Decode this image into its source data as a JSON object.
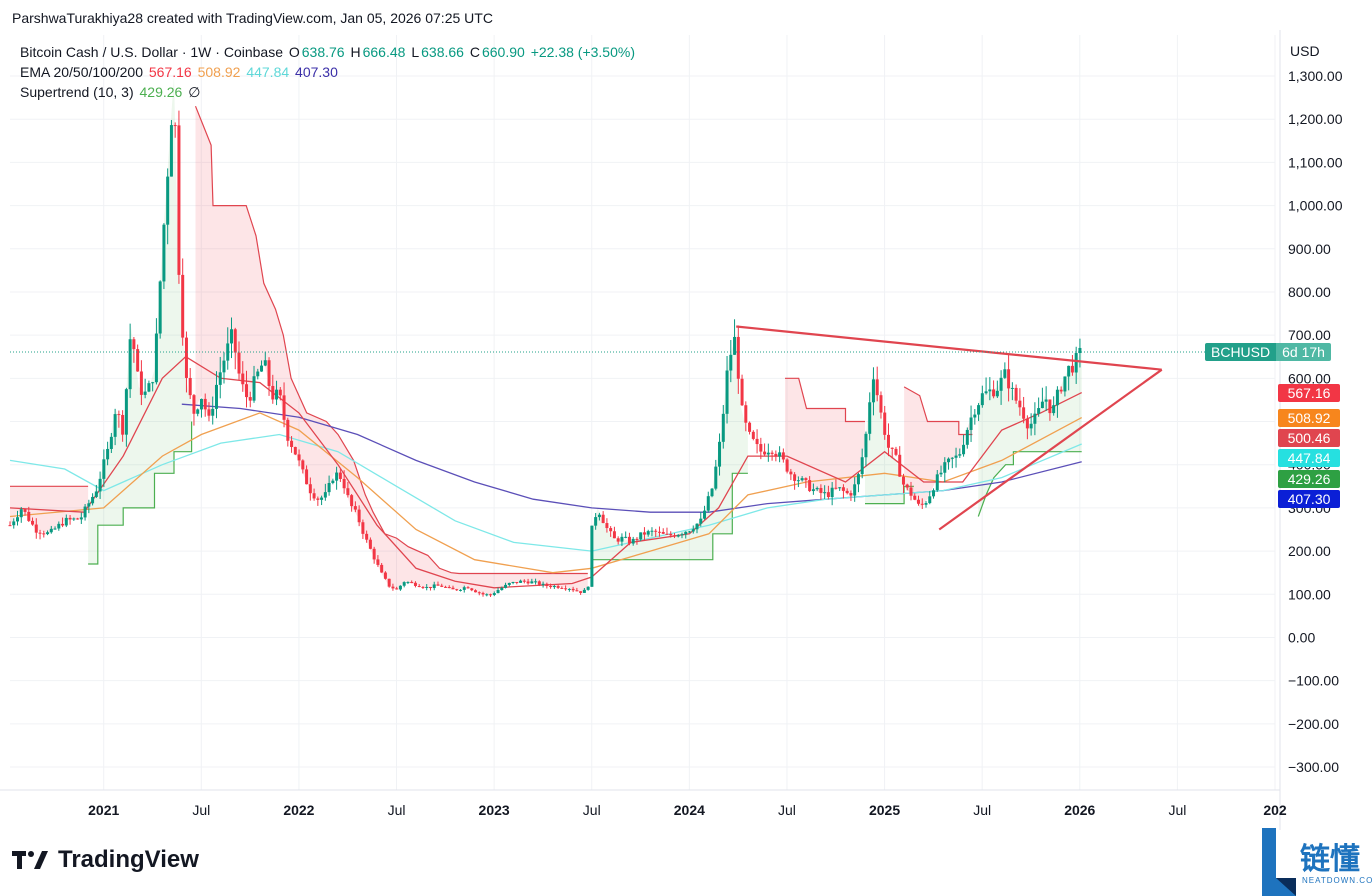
{
  "header": {
    "created_by": "ParshwaTurakhiya28 created with TradingView.com, Jan 05, 2026 07:25 UTC"
  },
  "legend": {
    "symbol": "Bitcoin Cash / U.S. Dollar · 1W · Coinbase",
    "o_label": "O",
    "o_value": "638.76",
    "h_label": "H",
    "h_value": "666.48",
    "l_label": "L",
    "l_value": "638.66",
    "c_label": "C",
    "c_value": "660.90",
    "change": "+22.38 (+3.50%)",
    "ema_label": "EMA 20/50/100/200",
    "ema20": "567.16",
    "ema50": "508.92",
    "ema100": "447.84",
    "ema200": "407.30",
    "supertrend_label": "Supertrend (10, 3)",
    "supertrend_value": "429.26",
    "supertrend_icon": "∅"
  },
  "axis": {
    "currency": "USD"
  },
  "symbol_tag": {
    "symbol": "BCHUSD",
    "countdown": "6d 17h"
  },
  "price_tags": [
    {
      "value": "567.16",
      "color": "#f23645",
      "price": 567.16
    },
    {
      "value": "508.92",
      "color": "#f7861d",
      "price": 508.92
    },
    {
      "value": "500.46",
      "color": "#e0454f",
      "price": 500.46
    },
    {
      "value": "447.84",
      "color": "#26e0e0",
      "price": 447.84
    },
    {
      "value": "429.26",
      "color": "#2ea043",
      "price": 429.26
    },
    {
      "value": "407.30",
      "color": "#0b1fd6",
      "price": 407.3
    }
  ],
  "footer": {
    "brand": "TradingView"
  },
  "watermark": {
    "cn": "链懂",
    "en": "NEATDOWN.COM"
  },
  "colors": {
    "up": "#089981",
    "down": "#f23645",
    "ema20": "#e0454f",
    "ema50": "#f0a050",
    "ema100": "#7ee8e8",
    "ema200": "#5b4fb8",
    "supertrend_up": "#4caf50",
    "supertrend_down": "#e0454f",
    "trendline": "#e0454f"
  },
  "chart_data": {
    "type": "candlestick",
    "title": "Bitcoin Cash / U.S. Dollar · 1W · Coinbase",
    "ylim": [
      -330,
      1350
    ],
    "y_ticks": [
      1300,
      1200,
      1100,
      1000,
      900,
      800,
      700,
      600,
      500,
      400,
      300,
      200,
      100,
      0,
      -100,
      -200,
      -300
    ],
    "y_tick_labels": [
      "1,300.00",
      "1,200.00",
      "1,100.00",
      "1,000.00",
      "900.00",
      "800.00",
      "700.00",
      "600.00",
      "500.00",
      "400.00",
      "300.00",
      "200.00",
      "100.00",
      "0.00",
      "−100.00",
      "−200.00",
      "−300.00"
    ],
    "x_ticks": [
      {
        "label": "2021",
        "t": 2021.0,
        "bold": true
      },
      {
        "label": "Jul",
        "t": 2021.5,
        "bold": false
      },
      {
        "label": "2022",
        "t": 2022.0,
        "bold": true
      },
      {
        "label": "Jul",
        "t": 2022.5,
        "bold": false
      },
      {
        "label": "2023",
        "t": 2023.0,
        "bold": true
      },
      {
        "label": "Jul",
        "t": 2023.5,
        "bold": false
      },
      {
        "label": "2024",
        "t": 2024.0,
        "bold": true
      },
      {
        "label": "Jul",
        "t": 2024.5,
        "bold": false
      },
      {
        "label": "2025",
        "t": 2025.0,
        "bold": true
      },
      {
        "label": "Jul",
        "t": 2025.5,
        "bold": false
      },
      {
        "label": "2026",
        "t": 2026.0,
        "bold": true
      },
      {
        "label": "Jul",
        "t": 2026.5,
        "bold": false
      },
      {
        "label": "202",
        "t": 2027.0,
        "bold": true
      }
    ],
    "last_price": 660.9,
    "price_path": [
      [
        2020.52,
        260
      ],
      [
        2020.58,
        300
      ],
      [
        2020.65,
        250
      ],
      [
        2020.72,
        240
      ],
      [
        2020.8,
        270
      ],
      [
        2020.88,
        275
      ],
      [
        2020.96,
        340
      ],
      [
        2021.02,
        430
      ],
      [
        2021.06,
        530
      ],
      [
        2021.1,
        480
      ],
      [
        2021.14,
        720
      ],
      [
        2021.18,
        580
      ],
      [
        2021.22,
        560
      ],
      [
        2021.26,
        620
      ],
      [
        2021.3,
        900
      ],
      [
        2021.33,
        1100
      ],
      [
        2021.36,
        1300
      ],
      [
        2021.38,
        900
      ],
      [
        2021.42,
        600
      ],
      [
        2021.46,
        520
      ],
      [
        2021.5,
        560
      ],
      [
        2021.54,
        500
      ],
      [
        2021.58,
        590
      ],
      [
        2021.62,
        650
      ],
      [
        2021.66,
        700
      ],
      [
        2021.7,
        590
      ],
      [
        2021.74,
        550
      ],
      [
        2021.78,
        600
      ],
      [
        2021.82,
        640
      ],
      [
        2021.86,
        560
      ],
      [
        2021.9,
        560
      ],
      [
        2021.94,
        470
      ],
      [
        2021.98,
        430
      ],
      [
        2022.02,
        380
      ],
      [
        2022.06,
        340
      ],
      [
        2022.1,
        320
      ],
      [
        2022.14,
        330
      ],
      [
        2022.18,
        380
      ],
      [
        2022.22,
        370
      ],
      [
        2022.26,
        310
      ],
      [
        2022.3,
        280
      ],
      [
        2022.34,
        230
      ],
      [
        2022.38,
        190
      ],
      [
        2022.42,
        150
      ],
      [
        2022.46,
        120
      ],
      [
        2022.5,
        110
      ],
      [
        2022.54,
        130
      ],
      [
        2022.58,
        125
      ],
      [
        2022.62,
        120
      ],
      [
        2022.66,
        115
      ],
      [
        2022.7,
        120
      ],
      [
        2022.74,
        118
      ],
      [
        2022.78,
        110
      ],
      [
        2022.82,
        112
      ],
      [
        2022.86,
        118
      ],
      [
        2022.9,
        108
      ],
      [
        2022.94,
        100
      ],
      [
        2022.98,
        98
      ],
      [
        2023.02,
        110
      ],
      [
        2023.08,
        125
      ],
      [
        2023.14,
        130
      ],
      [
        2023.2,
        128
      ],
      [
        2023.26,
        120
      ],
      [
        2023.32,
        118
      ],
      [
        2023.38,
        115
      ],
      [
        2023.44,
        105
      ],
      [
        2023.48,
        110
      ],
      [
        2023.5,
        250
      ],
      [
        2023.53,
        300
      ],
      [
        2023.58,
        250
      ],
      [
        2023.62,
        225
      ],
      [
        2023.66,
        230
      ],
      [
        2023.7,
        220
      ],
      [
        2023.76,
        240
      ],
      [
        2023.82,
        245
      ],
      [
        2023.88,
        235
      ],
      [
        2023.94,
        240
      ],
      [
        2024.0,
        250
      ],
      [
        2024.06,
        270
      ],
      [
        2024.12,
        350
      ],
      [
        2024.16,
        460
      ],
      [
        2024.2,
        640
      ],
      [
        2024.24,
        700
      ],
      [
        2024.26,
        540
      ],
      [
        2024.3,
        470
      ],
      [
        2024.36,
        430
      ],
      [
        2024.42,
        440
      ],
      [
        2024.46,
        420
      ],
      [
        2024.52,
        380
      ],
      [
        2024.58,
        360
      ],
      [
        2024.64,
        340
      ],
      [
        2024.7,
        330
      ],
      [
        2024.76,
        345
      ],
      [
        2024.82,
        330
      ],
      [
        2024.86,
        360
      ],
      [
        2024.9,
        450
      ],
      [
        2024.94,
        620
      ],
      [
        2024.98,
        520
      ],
      [
        2025.02,
        440
      ],
      [
        2025.06,
        410
      ],
      [
        2025.1,
        350
      ],
      [
        2025.14,
        330
      ],
      [
        2025.18,
        300
      ],
      [
        2025.22,
        320
      ],
      [
        2025.26,
        360
      ],
      [
        2025.3,
        390
      ],
      [
        2025.34,
        410
      ],
      [
        2025.38,
        420
      ],
      [
        2025.42,
        480
      ],
      [
        2025.46,
        530
      ],
      [
        2025.5,
        560
      ],
      [
        2025.54,
        570
      ],
      [
        2025.58,
        580
      ],
      [
        2025.62,
        610
      ],
      [
        2025.66,
        560
      ],
      [
        2025.7,
        530
      ],
      [
        2025.74,
        490
      ],
      [
        2025.78,
        510
      ],
      [
        2025.82,
        560
      ],
      [
        2025.86,
        520
      ],
      [
        2025.9,
        580
      ],
      [
        2025.94,
        620
      ],
      [
        2025.98,
        639
      ],
      [
        2026.01,
        661
      ]
    ],
    "ema20": [
      [
        2020.52,
        300
      ],
      [
        2020.9,
        290
      ],
      [
        2021.1,
        420
      ],
      [
        2021.3,
        600
      ],
      [
        2021.42,
        650
      ],
      [
        2021.6,
        600
      ],
      [
        2021.8,
        590
      ],
      [
        2022.0,
        520
      ],
      [
        2022.2,
        400
      ],
      [
        2022.4,
        260
      ],
      [
        2022.6,
        160
      ],
      [
        2022.8,
        130
      ],
      [
        2023.0,
        115
      ],
      [
        2023.4,
        125
      ],
      [
        2023.5,
        140
      ],
      [
        2023.7,
        220
      ],
      [
        2024.0,
        240
      ],
      [
        2024.15,
        300
      ],
      [
        2024.3,
        420
      ],
      [
        2024.5,
        420
      ],
      [
        2024.8,
        360
      ],
      [
        2025.0,
        430
      ],
      [
        2025.2,
        360
      ],
      [
        2025.4,
        360
      ],
      [
        2025.6,
        480
      ],
      [
        2025.8,
        520
      ],
      [
        2026.01,
        567
      ]
    ],
    "ema50": [
      [
        2020.52,
        280
      ],
      [
        2021.0,
        300
      ],
      [
        2021.3,
        420
      ],
      [
        2021.5,
        470
      ],
      [
        2021.8,
        520
      ],
      [
        2022.0,
        480
      ],
      [
        2022.3,
        370
      ],
      [
        2022.6,
        250
      ],
      [
        2022.9,
        180
      ],
      [
        2023.3,
        150
      ],
      [
        2023.5,
        160
      ],
      [
        2023.8,
        200
      ],
      [
        2024.1,
        240
      ],
      [
        2024.3,
        330
      ],
      [
        2024.6,
        360
      ],
      [
        2025.0,
        380
      ],
      [
        2025.3,
        360
      ],
      [
        2025.6,
        410
      ],
      [
        2026.01,
        509
      ]
    ],
    "ema100": [
      [
        2020.52,
        410
      ],
      [
        2020.8,
        390
      ],
      [
        2021.0,
        340
      ],
      [
        2021.3,
        400
      ],
      [
        2021.6,
        450
      ],
      [
        2021.9,
        470
      ],
      [
        2022.2,
        430
      ],
      [
        2022.5,
        350
      ],
      [
        2022.8,
        270
      ],
      [
        2023.1,
        220
      ],
      [
        2023.5,
        200
      ],
      [
        2023.8,
        230
      ],
      [
        2024.1,
        260
      ],
      [
        2024.4,
        300
      ],
      [
        2024.7,
        320
      ],
      [
        2025.0,
        330
      ],
      [
        2025.3,
        340
      ],
      [
        2025.6,
        370
      ],
      [
        2026.01,
        448
      ]
    ],
    "ema200": [
      [
        2021.4,
        540
      ],
      [
        2021.7,
        530
      ],
      [
        2022.0,
        510
      ],
      [
        2022.3,
        470
      ],
      [
        2022.6,
        410
      ],
      [
        2022.9,
        360
      ],
      [
        2023.2,
        320
      ],
      [
        2023.5,
        300
      ],
      [
        2023.8,
        290
      ],
      [
        2024.1,
        290
      ],
      [
        2024.4,
        310
      ],
      [
        2024.7,
        320
      ],
      [
        2025.0,
        330
      ],
      [
        2025.3,
        340
      ],
      [
        2025.6,
        360
      ],
      [
        2026.01,
        407
      ]
    ],
    "supertrend": [
      {
        "dir": "down",
        "points": [
          [
            2020.52,
            350
          ],
          [
            2020.92,
            350
          ]
        ]
      },
      {
        "dir": "up",
        "points": [
          [
            2020.92,
            170
          ],
          [
            2020.97,
            170
          ],
          [
            2020.97,
            260
          ],
          [
            2021.1,
            260
          ],
          [
            2021.1,
            300
          ],
          [
            2021.26,
            300
          ],
          [
            2021.26,
            380
          ],
          [
            2021.36,
            380
          ],
          [
            2021.36,
            430
          ],
          [
            2021.45,
            430
          ],
          [
            2021.45,
            500
          ]
        ]
      },
      {
        "dir": "down",
        "points": [
          [
            2021.47,
            1230
          ],
          [
            2021.55,
            1140
          ],
          [
            2021.56,
            1000
          ],
          [
            2021.73,
            1000
          ],
          [
            2021.78,
            930
          ],
          [
            2021.82,
            820
          ],
          [
            2021.88,
            760
          ],
          [
            2021.92,
            700
          ],
          [
            2021.96,
            600
          ],
          [
            2022.04,
            520
          ],
          [
            2022.14,
            500
          ],
          [
            2022.2,
            470
          ],
          [
            2022.28,
            410
          ],
          [
            2022.34,
            330
          ],
          [
            2022.38,
            290
          ],
          [
            2022.44,
            240
          ],
          [
            2022.5,
            230
          ],
          [
            2022.56,
            210
          ],
          [
            2022.66,
            190
          ],
          [
            2022.72,
            160
          ],
          [
            2022.78,
            150
          ],
          [
            2022.82,
            148
          ],
          [
            2023.0,
            148
          ],
          [
            2023.48,
            148
          ]
        ]
      },
      {
        "dir": "up",
        "points": [
          [
            2023.5,
            180
          ],
          [
            2024.12,
            180
          ],
          [
            2024.12,
            240
          ],
          [
            2024.22,
            240
          ],
          [
            2024.22,
            380
          ],
          [
            2024.3,
            380
          ]
        ]
      },
      {
        "dir": "down",
        "points": [
          [
            2024.49,
            600
          ],
          [
            2024.56,
            600
          ],
          [
            2024.6,
            530
          ],
          [
            2024.8,
            530
          ],
          [
            2024.8,
            500
          ],
          [
            2024.9,
            500
          ]
        ]
      },
      {
        "dir": "up",
        "points": [
          [
            2024.9,
            310
          ],
          [
            2025.1,
            310
          ],
          [
            2025.1,
            350
          ],
          [
            2025.15,
            350
          ]
        ]
      },
      {
        "dir": "down",
        "points": [
          [
            2025.1,
            580
          ],
          [
            2025.18,
            560
          ],
          [
            2025.22,
            500
          ],
          [
            2025.38,
            500
          ],
          [
            2025.38,
            470
          ],
          [
            2025.45,
            470
          ]
        ]
      },
      {
        "dir": "up",
        "points": [
          [
            2025.48,
            280
          ],
          [
            2025.52,
            330
          ],
          [
            2025.56,
            370
          ],
          [
            2025.62,
            400
          ],
          [
            2025.66,
            400
          ],
          [
            2025.66,
            430
          ],
          [
            2026.01,
            430
          ]
        ]
      }
    ],
    "trendlines": [
      {
        "name": "upper",
        "points": [
          [
            2024.24,
            720
          ],
          [
            2026.42,
            620
          ]
        ]
      },
      {
        "name": "lower",
        "points": [
          [
            2025.28,
            250
          ],
          [
            2026.42,
            620
          ]
        ]
      }
    ]
  }
}
